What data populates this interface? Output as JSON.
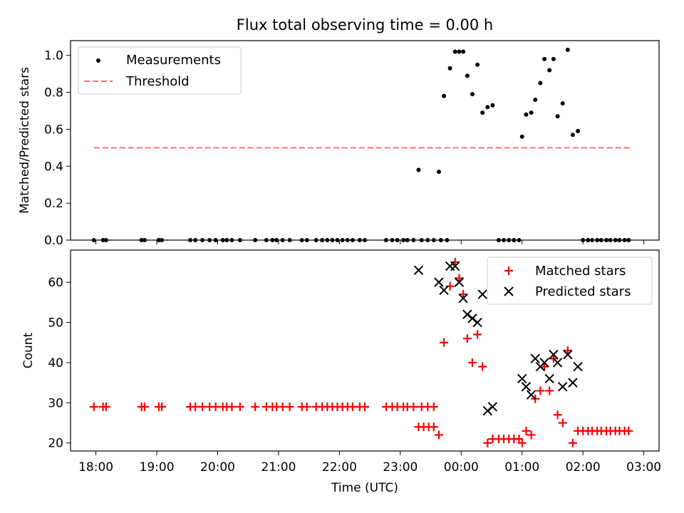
{
  "figure": {
    "title": "Flux total observing time = 0.00 h",
    "xlabel": "Time (UTC)"
  },
  "chart_data": [
    {
      "type": "scatter",
      "panel": "top",
      "ylabel": "Matched/Predicted stars",
      "xlim": [
        "17:35",
        "03:15"
      ],
      "ylim": [
        0,
        1.08
      ],
      "yticks": [
        "0.0",
        "0.2",
        "0.4",
        "0.6",
        "0.8",
        "1.0"
      ],
      "ytick_values": [
        0,
        0.2,
        0.4,
        0.6,
        0.8,
        1.0
      ],
      "legend_position": "top-left",
      "grid": false,
      "threshold": {
        "name": "Threshold",
        "value": 0.5,
        "x_range": [
          "17:58",
          "02:48"
        ],
        "color": "#ff7070",
        "style": "dashed"
      },
      "series": [
        {
          "name": "Measurements",
          "color": "#000000",
          "marker": "dot",
          "points": [
            [
              "17:58",
              0
            ],
            [
              "18:07",
              0
            ],
            [
              "18:10",
              0
            ],
            [
              "18:45",
              0
            ],
            [
              "18:48",
              0
            ],
            [
              "19:02",
              0
            ],
            [
              "19:05",
              0
            ],
            [
              "19:33",
              0
            ],
            [
              "19:38",
              0
            ],
            [
              "19:45",
              0
            ],
            [
              "19:52",
              0
            ],
            [
              "19:58",
              0
            ],
            [
              "20:05",
              0
            ],
            [
              "20:09",
              0
            ],
            [
              "20:14",
              0
            ],
            [
              "20:22",
              0
            ],
            [
              "20:37",
              0
            ],
            [
              "20:48",
              0
            ],
            [
              "20:54",
              0
            ],
            [
              "20:58",
              0
            ],
            [
              "21:04",
              0
            ],
            [
              "21:11",
              0
            ],
            [
              "21:23",
              0
            ],
            [
              "21:28",
              0
            ],
            [
              "21:37",
              0
            ],
            [
              "21:43",
              0
            ],
            [
              "21:48",
              0
            ],
            [
              "21:53",
              0
            ],
            [
              "21:58",
              0
            ],
            [
              "22:03",
              0
            ],
            [
              "22:08",
              0
            ],
            [
              "22:13",
              0
            ],
            [
              "22:20",
              0
            ],
            [
              "22:25",
              0
            ],
            [
              "22:46",
              0
            ],
            [
              "22:52",
              0
            ],
            [
              "22:57",
              0
            ],
            [
              "23:03",
              0
            ],
            [
              "23:07",
              0
            ],
            [
              "23:13",
              0
            ],
            [
              "23:21",
              0
            ],
            [
              "23:27",
              0
            ],
            [
              "23:33",
              0
            ],
            [
              "23:40",
              0
            ],
            [
              "23:46",
              0
            ],
            [
              "23:18",
              0.38
            ],
            [
              "23:38",
              0.37
            ],
            [
              "23:43",
              0.78
            ],
            [
              "23:49",
              0.93
            ],
            [
              "23:54",
              1.02
            ],
            [
              "23:58",
              1.02
            ],
            [
              "00:02",
              1.02
            ],
            [
              "00:06",
              0.89
            ],
            [
              "00:11",
              0.79
            ],
            [
              "00:16",
              0.95
            ],
            [
              "00:21",
              0.69
            ],
            [
              "00:26",
              0.72
            ],
            [
              "00:31",
              0.73
            ],
            [
              "00:37",
              0
            ],
            [
              "00:42",
              0
            ],
            [
              "00:47",
              0
            ],
            [
              "00:52",
              0
            ],
            [
              "00:57",
              0
            ],
            [
              "01:00",
              0.56
            ],
            [
              "01:04",
              0.68
            ],
            [
              "01:09",
              0.69
            ],
            [
              "01:13",
              0.76
            ],
            [
              "01:18",
              0.85
            ],
            [
              "01:22",
              0.98
            ],
            [
              "01:27",
              0.92
            ],
            [
              "01:31",
              0.98
            ],
            [
              "01:35",
              0.67
            ],
            [
              "01:40",
              0.74
            ],
            [
              "01:45",
              1.03
            ],
            [
              "01:50",
              0.57
            ],
            [
              "01:55",
              0.59
            ],
            [
              "02:00",
              0
            ],
            [
              "02:05",
              0
            ],
            [
              "02:09",
              0
            ],
            [
              "02:14",
              0
            ],
            [
              "02:18",
              0
            ],
            [
              "02:23",
              0
            ],
            [
              "02:27",
              0
            ],
            [
              "02:32",
              0
            ],
            [
              "02:36",
              0
            ],
            [
              "02:41",
              0
            ],
            [
              "02:45",
              0
            ]
          ]
        }
      ]
    },
    {
      "type": "scatter",
      "panel": "bottom",
      "ylabel": "Count",
      "xlim": [
        "17:35",
        "03:15"
      ],
      "ylim": [
        18,
        68
      ],
      "yticks": [
        "20",
        "30",
        "40",
        "50",
        "60"
      ],
      "ytick_values": [
        20,
        30,
        40,
        50,
        60
      ],
      "xticks": [
        "18:00",
        "19:00",
        "20:00",
        "21:00",
        "22:00",
        "23:00",
        "00:00",
        "01:00",
        "02:00",
        "03:00"
      ],
      "legend_position": "top-right",
      "grid": false,
      "series": [
        {
          "name": "Matched stars",
          "color": "#ff0000",
          "marker": "plus",
          "points": [
            [
              "17:58",
              29
            ],
            [
              "18:07",
              29
            ],
            [
              "18:10",
              29
            ],
            [
              "18:45",
              29
            ],
            [
              "18:48",
              29
            ],
            [
              "19:02",
              29
            ],
            [
              "19:05",
              29
            ],
            [
              "19:33",
              29
            ],
            [
              "19:38",
              29
            ],
            [
              "19:45",
              29
            ],
            [
              "19:52",
              29
            ],
            [
              "19:58",
              29
            ],
            [
              "20:05",
              29
            ],
            [
              "20:09",
              29
            ],
            [
              "20:14",
              29
            ],
            [
              "20:22",
              29
            ],
            [
              "20:37",
              29
            ],
            [
              "20:48",
              29
            ],
            [
              "20:54",
              29
            ],
            [
              "20:58",
              29
            ],
            [
              "21:04",
              29
            ],
            [
              "21:11",
              29
            ],
            [
              "21:23",
              29
            ],
            [
              "21:28",
              29
            ],
            [
              "21:37",
              29
            ],
            [
              "21:43",
              29
            ],
            [
              "21:48",
              29
            ],
            [
              "21:53",
              29
            ],
            [
              "21:58",
              29
            ],
            [
              "22:03",
              29
            ],
            [
              "22:08",
              29
            ],
            [
              "22:13",
              29
            ],
            [
              "22:20",
              29
            ],
            [
              "22:25",
              29
            ],
            [
              "22:46",
              29
            ],
            [
              "22:52",
              29
            ],
            [
              "22:57",
              29
            ],
            [
              "23:03",
              29
            ],
            [
              "23:07",
              29
            ],
            [
              "23:13",
              29
            ],
            [
              "23:21",
              29
            ],
            [
              "23:27",
              29
            ],
            [
              "23:33",
              29
            ],
            [
              "23:18",
              24
            ],
            [
              "23:23",
              24
            ],
            [
              "23:28",
              24
            ],
            [
              "23:33",
              24
            ],
            [
              "23:38",
              22
            ],
            [
              "23:43",
              45
            ],
            [
              "23:49",
              59
            ],
            [
              "23:54",
              65
            ],
            [
              "23:58",
              61
            ],
            [
              "00:02",
              57
            ],
            [
              "00:06",
              46
            ],
            [
              "00:11",
              40
            ],
            [
              "00:16",
              47
            ],
            [
              "00:21",
              39
            ],
            [
              "00:26",
              20
            ],
            [
              "00:31",
              21
            ],
            [
              "00:37",
              21
            ],
            [
              "00:42",
              21
            ],
            [
              "00:47",
              21
            ],
            [
              "00:52",
              21
            ],
            [
              "00:57",
              21
            ],
            [
              "01:00",
              20
            ],
            [
              "01:04",
              23
            ],
            [
              "01:09",
              22
            ],
            [
              "01:13",
              31
            ],
            [
              "01:18",
              33
            ],
            [
              "01:22",
              39
            ],
            [
              "01:27",
              33
            ],
            [
              "01:31",
              41
            ],
            [
              "01:35",
              27
            ],
            [
              "01:40",
              25
            ],
            [
              "01:45",
              43
            ],
            [
              "01:50",
              20
            ],
            [
              "01:55",
              23
            ],
            [
              "02:00",
              23
            ],
            [
              "02:05",
              23
            ],
            [
              "02:09",
              23
            ],
            [
              "02:14",
              23
            ],
            [
              "02:18",
              23
            ],
            [
              "02:23",
              23
            ],
            [
              "02:27",
              23
            ],
            [
              "02:32",
              23
            ],
            [
              "02:36",
              23
            ],
            [
              "02:41",
              23
            ],
            [
              "02:45",
              23
            ]
          ]
        },
        {
          "name": "Predicted stars",
          "color": "#000000",
          "marker": "x",
          "points": [
            [
              "23:18",
              63
            ],
            [
              "23:38",
              60
            ],
            [
              "23:43",
              58
            ],
            [
              "23:49",
              64
            ],
            [
              "23:54",
              64
            ],
            [
              "23:58",
              60
            ],
            [
              "00:02",
              56
            ],
            [
              "00:06",
              52
            ],
            [
              "00:11",
              51
            ],
            [
              "00:16",
              50
            ],
            [
              "00:21",
              57
            ],
            [
              "00:26",
              28
            ],
            [
              "00:31",
              29
            ],
            [
              "01:00",
              36
            ],
            [
              "01:04",
              34
            ],
            [
              "01:09",
              32
            ],
            [
              "01:13",
              41
            ],
            [
              "01:18",
              39
            ],
            [
              "01:22",
              40
            ],
            [
              "01:27",
              36
            ],
            [
              "01:31",
              42
            ],
            [
              "01:35",
              40
            ],
            [
              "01:40",
              34
            ],
            [
              "01:45",
              42
            ],
            [
              "01:50",
              35
            ],
            [
              "01:55",
              39
            ]
          ]
        }
      ]
    }
  ]
}
